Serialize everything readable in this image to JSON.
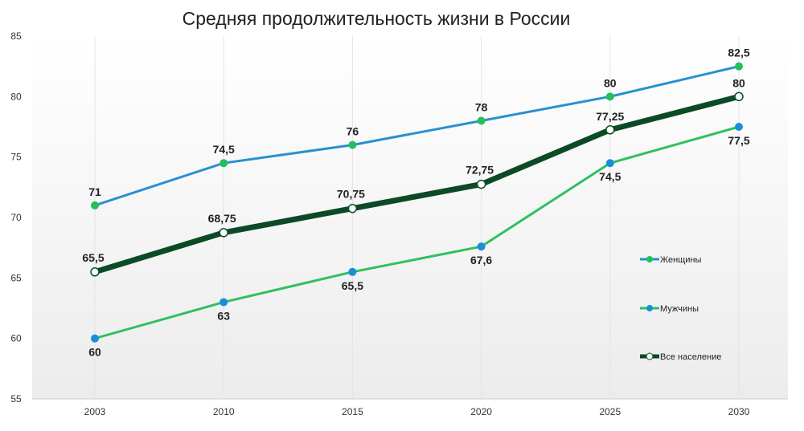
{
  "chart_data": {
    "type": "line",
    "title": "Средняя продолжительность жизни в России",
    "categories": [
      "2003",
      "2010",
      "2015",
      "2020",
      "2025",
      "2030"
    ],
    "ylim": [
      55,
      85
    ],
    "yticks": [
      55,
      60,
      65,
      70,
      75,
      80,
      85
    ],
    "grid": "vertical lines at categories",
    "legend_position": "right",
    "series": [
      {
        "name": "Женщины",
        "values": [
          71,
          74.5,
          76,
          78,
          80,
          82.5
        ],
        "labels": [
          "71",
          "74,5",
          "76",
          "78",
          "80",
          "82,5"
        ],
        "line_color": "#2a8fd0",
        "marker_color": "#22c05a",
        "label_pos": "above"
      },
      {
        "name": "Мужчины",
        "values": [
          60,
          63,
          65.5,
          67.6,
          74.5,
          77.5
        ],
        "labels": [
          "60",
          "63",
          "65,5",
          "67,6",
          "74,5",
          "77,5"
        ],
        "line_color": "#2fc060",
        "marker_color": "#1a8fd8",
        "label_pos": "below"
      },
      {
        "name": "Все население",
        "values": [
          65.5,
          68.75,
          70.75,
          72.75,
          77.25,
          80
        ],
        "labels": [
          "65,5",
          "68,75",
          "70,75",
          "72,75",
          "77,25",
          "80"
        ],
        "line_color": "#0b4a25",
        "marker_color": "#ffffff",
        "label_pos": "above"
      }
    ]
  }
}
